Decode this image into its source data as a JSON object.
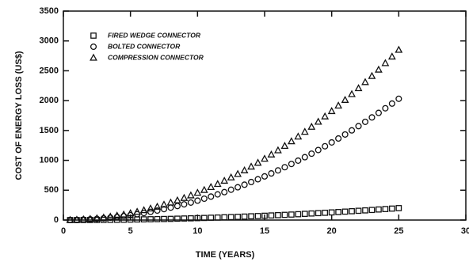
{
  "chart_data": {
    "type": "scatter",
    "xlabel": "TIME (YEARS)",
    "ylabel": "COST OF ENERGY LOSS (US$)",
    "xlim": [
      0,
      30
    ],
    "xticks": [
      0,
      5,
      10,
      15,
      20,
      25,
      30
    ],
    "ylim": [
      0,
      3500
    ],
    "yticks": [
      0,
      500,
      1000,
      1500,
      2000,
      2500,
      3000,
      3500
    ],
    "legend": "upper left",
    "x": [
      0.5,
      1,
      1.5,
      2,
      2.5,
      3,
      3.5,
      4,
      4.5,
      5,
      5.5,
      6,
      6.5,
      7,
      7.5,
      8,
      8.5,
      9,
      9.5,
      10,
      10.5,
      11,
      11.5,
      12,
      12.5,
      13,
      13.5,
      14,
      14.5,
      15,
      15.5,
      16,
      16.5,
      17,
      17.5,
      18,
      18.5,
      19,
      19.5,
      20,
      20.5,
      21,
      21.5,
      22,
      22.5,
      23,
      23.5,
      24,
      24.5,
      25
    ],
    "series": [
      {
        "name": "FIRED WEDGE CONNECTOR",
        "color": "#111111",
        "marker": "square",
        "values": [
          0,
          0,
          1,
          1,
          2,
          3,
          4,
          5,
          6,
          8,
          10,
          12,
          14,
          16,
          18,
          20,
          23,
          26,
          29,
          32,
          35,
          39,
          42,
          46,
          50,
          54,
          58,
          63,
          67,
          72,
          77,
          82,
          87,
          92,
          98,
          104,
          110,
          116,
          122,
          128,
          134,
          141,
          148,
          155,
          162,
          169,
          177,
          184,
          192,
          200
        ]
      },
      {
        "name": "BOLTED CONNECTOR",
        "color": "#111111",
        "marker": "circle",
        "values": [
          1,
          3,
          7,
          13,
          20,
          29,
          40,
          52,
          66,
          81,
          98,
          117,
          137,
          159,
          183,
          208,
          235,
          263,
          293,
          325,
          358,
          393,
          430,
          468,
          508,
          549,
          592,
          637,
          683,
          731,
          781,
          832,
          885,
          939,
          995,
          1053,
          1112,
          1173,
          1236,
          1300,
          1366,
          1433,
          1502,
          1573,
          1645,
          1719,
          1795,
          1872,
          1951,
          2031
        ]
      },
      {
        "name": "COMPRESSION CONNECTOR",
        "color": "#111111",
        "marker": "triangle",
        "values": [
          1,
          5,
          10,
          18,
          29,
          41,
          56,
          73,
          92,
          114,
          138,
          164,
          193,
          223,
          257,
          292,
          329,
          369,
          412,
          456,
          503,
          552,
          603,
          657,
          713,
          771,
          831,
          894,
          959,
          1026,
          1096,
          1167,
          1241,
          1318,
          1397,
          1477,
          1561,
          1646,
          1734,
          1824,
          1916,
          2011,
          2108,
          2207,
          2309,
          2412,
          2518,
          2627,
          2737,
          2850
        ]
      }
    ]
  }
}
